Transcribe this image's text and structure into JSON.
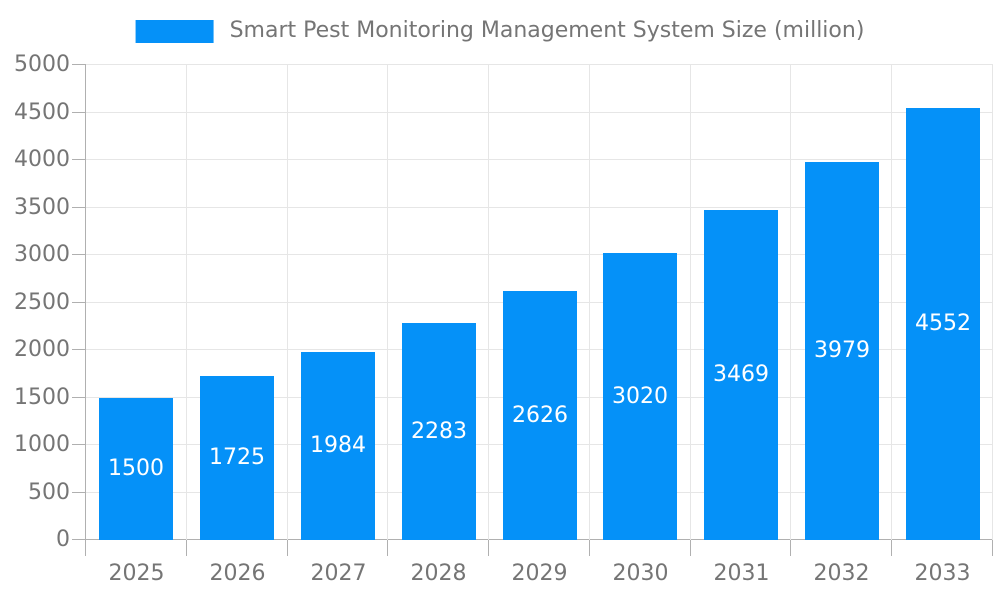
{
  "colors": {
    "bar": "#0591f8",
    "grid": "#e6e6e6",
    "axis": "#b0b0b0",
    "text": "#757575",
    "value_label": "#ffffff",
    "background": "#ffffff"
  },
  "legend": {
    "label": "Smart Pest Monitoring Management System Size (million)"
  },
  "chart_data": {
    "type": "bar",
    "title": "Smart Pest Monitoring Management System Size (million)",
    "categories": [
      "2025",
      "2026",
      "2027",
      "2028",
      "2029",
      "2030",
      "2031",
      "2032",
      "2033"
    ],
    "values": [
      1500,
      1725,
      1984,
      2283,
      2626,
      3020,
      3469,
      3979,
      4552
    ],
    "xlabel": "",
    "ylabel": "",
    "ylim": [
      0,
      5000
    ],
    "ytick_step": 500,
    "grid": true,
    "value_labels": "inside-center",
    "legend_position": "top-center"
  }
}
